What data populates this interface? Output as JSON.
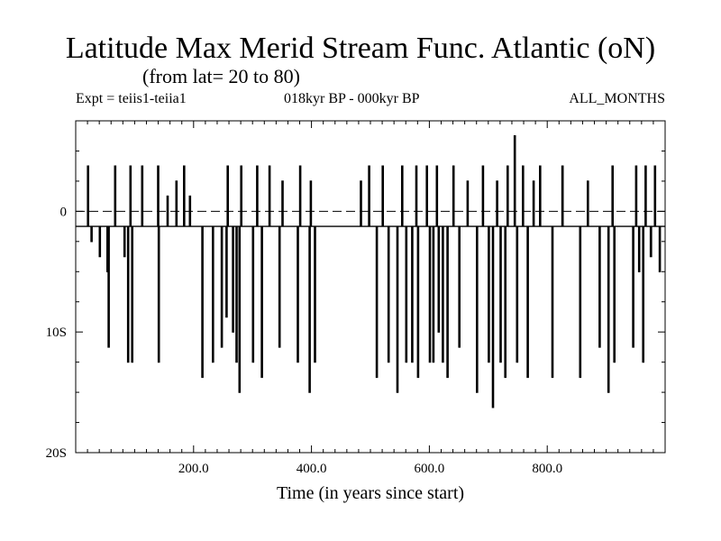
{
  "title": "Latitude Max Merid Stream Func. Atlantic (oN)",
  "subtitle": "(from lat= 20 to 80)",
  "info_left": "Expt = teiis1-teiia1",
  "info_center": "018kyr BP - 000kyr BP",
  "info_right": "ALL_MONTHS",
  "chart_data": {
    "type": "line",
    "title": "Latitude Max Merid Stream Func. Atlantic (oN)",
    "xlabel": "Time (in years since start)",
    "ylabel": "",
    "xlim": [
      0,
      1000
    ],
    "ylim": [
      -20,
      7.5
    ],
    "x_ticks": [
      200,
      400,
      600,
      800
    ],
    "x_tick_labels": [
      "200.0",
      "400.0",
      "600.0",
      "800.0"
    ],
    "y_ticks": [
      0,
      -10,
      -20
    ],
    "y_tick_labels": [
      "0",
      "10S",
      "20S"
    ],
    "reference_line": {
      "y": 0,
      "style": "dashed"
    },
    "baseline": -1.25,
    "grid": false,
    "series": [
      {
        "spikes": [
          {
            "x": 20,
            "y": 3.75
          },
          {
            "x": 26,
            "y": -2.5
          },
          {
            "x": 40,
            "y": -3.75
          },
          {
            "x": 53,
            "y": -5
          },
          {
            "x": 55,
            "y": -11.25
          },
          {
            "x": 66,
            "y": 3.75
          },
          {
            "x": 82,
            "y": -3.75
          },
          {
            "x": 88,
            "y": -12.5
          },
          {
            "x": 92,
            "y": 3.75
          },
          {
            "x": 95,
            "y": -12.5
          },
          {
            "x": 112,
            "y": 3.75
          },
          {
            "x": 139,
            "y": 3.75
          },
          {
            "x": 140,
            "y": -12.5
          },
          {
            "x": 155,
            "y": 1.25
          },
          {
            "x": 170,
            "y": 2.5
          },
          {
            "x": 183,
            "y": 3.75
          },
          {
            "x": 193,
            "y": 1.25
          },
          {
            "x": 214,
            "y": -13.75
          },
          {
            "x": 232,
            "y": -12.5
          },
          {
            "x": 247,
            "y": -11.25
          },
          {
            "x": 255,
            "y": -8.75
          },
          {
            "x": 257,
            "y": 3.75
          },
          {
            "x": 266,
            "y": -10
          },
          {
            "x": 272,
            "y": -12.5
          },
          {
            "x": 277,
            "y": -15
          },
          {
            "x": 280,
            "y": 3.75
          },
          {
            "x": 300,
            "y": -12.5
          },
          {
            "x": 307,
            "y": 3.75
          },
          {
            "x": 315,
            "y": -13.75
          },
          {
            "x": 328,
            "y": 3.75
          },
          {
            "x": 345,
            "y": -11.25
          },
          {
            "x": 350,
            "y": 2.5
          },
          {
            "x": 376,
            "y": -12.5
          },
          {
            "x": 380,
            "y": 3.75
          },
          {
            "x": 396,
            "y": -15
          },
          {
            "x": 398,
            "y": 2.5
          },
          {
            "x": 405,
            "y": -12.5
          },
          {
            "x": 440,
            "y": -1.25
          },
          {
            "x": 483,
            "y": 2.5
          },
          {
            "x": 497,
            "y": 3.75
          },
          {
            "x": 510,
            "y": -13.75
          },
          {
            "x": 520,
            "y": 3.75
          },
          {
            "x": 530,
            "y": -12.5
          },
          {
            "x": 545,
            "y": -15
          },
          {
            "x": 553,
            "y": 3.75
          },
          {
            "x": 560,
            "y": -12.5
          },
          {
            "x": 570,
            "y": -12.5
          },
          {
            "x": 577,
            "y": 3.75
          },
          {
            "x": 580,
            "y": -13.75
          },
          {
            "x": 595,
            "y": 3.75
          },
          {
            "x": 600,
            "y": -12.5
          },
          {
            "x": 606,
            "y": -12.5
          },
          {
            "x": 612,
            "y": 3.75
          },
          {
            "x": 615,
            "y": -10
          },
          {
            "x": 622,
            "y": -12.5
          },
          {
            "x": 630,
            "y": -13.75
          },
          {
            "x": 640,
            "y": 3.75
          },
          {
            "x": 650,
            "y": -11.25
          },
          {
            "x": 664,
            "y": 2.5
          },
          {
            "x": 680,
            "y": -15
          },
          {
            "x": 690,
            "y": 3.75
          },
          {
            "x": 700,
            "y": -12.5
          },
          {
            "x": 707,
            "y": -16.25
          },
          {
            "x": 714,
            "y": 2.5
          },
          {
            "x": 720,
            "y": -12.5
          },
          {
            "x": 728,
            "y": -13.75
          },
          {
            "x": 732,
            "y": 3.75
          },
          {
            "x": 744,
            "y": 6.25
          },
          {
            "x": 748,
            "y": -12.5
          },
          {
            "x": 758,
            "y": 3.75
          },
          {
            "x": 766,
            "y": -13.75
          },
          {
            "x": 776,
            "y": 2.5
          },
          {
            "x": 787,
            "y": 3.75
          },
          {
            "x": 808,
            "y": -13.75
          },
          {
            "x": 825,
            "y": 3.75
          },
          {
            "x": 855,
            "y": -13.75
          },
          {
            "x": 868,
            "y": 2.5
          },
          {
            "x": 888,
            "y": -11.25
          },
          {
            "x": 903,
            "y": -15
          },
          {
            "x": 910,
            "y": 3.75
          },
          {
            "x": 913,
            "y": -12.5
          },
          {
            "x": 945,
            "y": -11.25
          },
          {
            "x": 950,
            "y": 3.75
          },
          {
            "x": 955,
            "y": -5
          },
          {
            "x": 962,
            "y": -12.5
          },
          {
            "x": 966,
            "y": 3.75
          },
          {
            "x": 975,
            "y": -3.75
          },
          {
            "x": 982,
            "y": 3.75
          },
          {
            "x": 990,
            "y": -5
          }
        ]
      }
    ]
  }
}
